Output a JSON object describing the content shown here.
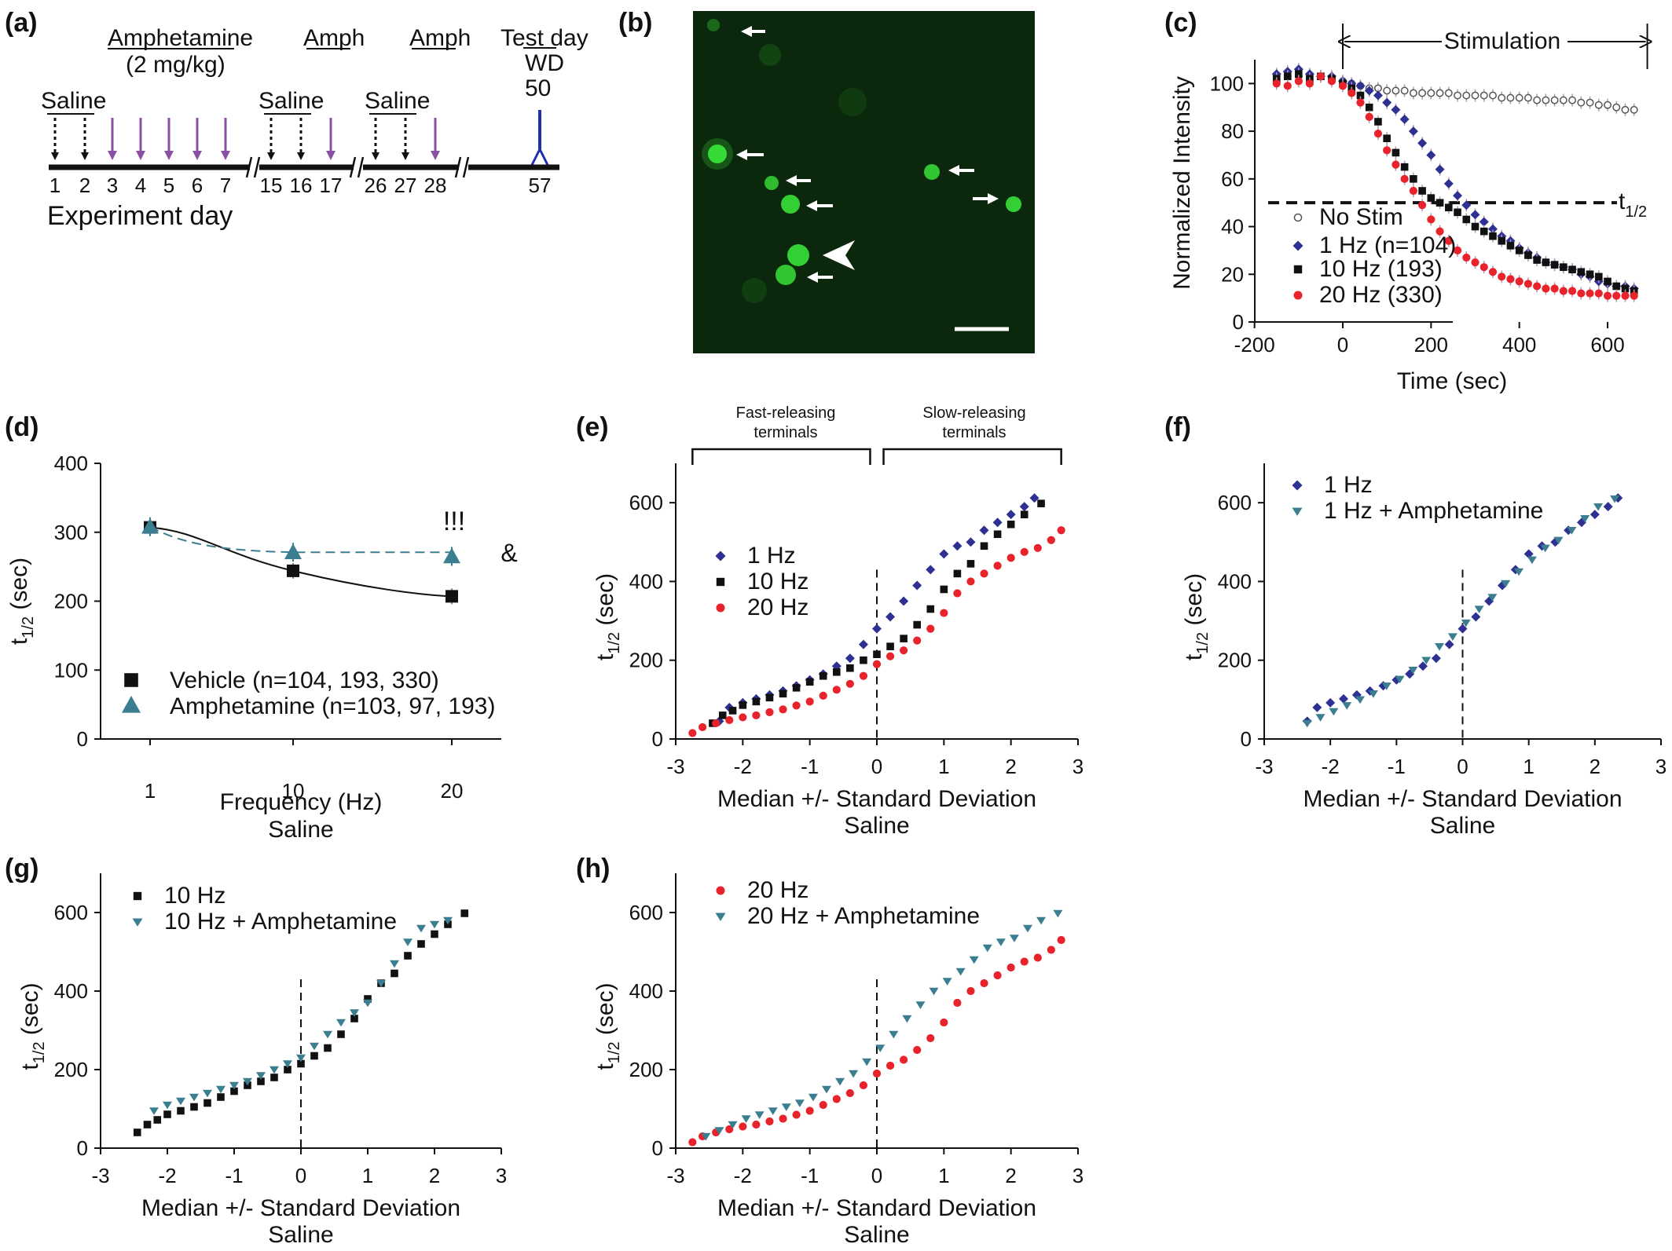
{
  "panel_labels": [
    "(a)",
    "(b)",
    "(c)",
    "(d)",
    "(e)",
    "(f)",
    "(g)",
    "(h)"
  ],
  "colors": {
    "no_stim": "#555555",
    "hz1": "#2e3192",
    "hz10": "#111111",
    "hz20": "#e8232b",
    "amph": "#3a7e90",
    "schedule_amph_arrow": "#8a4fa0",
    "test_day_marker": "#1f2fb0",
    "micrograph_bg": "#0c280c",
    "micrograph_spot": "#39e139"
  },
  "timeline": {
    "saline1": "Saline",
    "amph_title": "Amphetamine",
    "amph_dose": "(2 mg/kg)",
    "saline2": "Saline",
    "amph2": "Amph",
    "saline3": "Saline",
    "amph3": "Amph",
    "test_day": "Test day",
    "wd": "WD",
    "wd_day": "50",
    "days": [
      "1",
      "2",
      "3",
      "4",
      "5",
      "6",
      "7",
      "15",
      "16",
      "17",
      "26",
      "27",
      "28",
      "57"
    ],
    "xlabel": "Experiment day"
  },
  "chart_data": [
    {
      "panel": "(c)",
      "type": "scatter",
      "xlabel": "Time (sec)",
      "ylabel": "Normalized Intensity",
      "xlim": [
        -200,
        700
      ],
      "ylim": [
        0,
        110
      ],
      "xticks": [
        "-200",
        "0",
        "200",
        "400",
        "600"
      ],
      "yticks": [
        "0",
        "20",
        "40",
        "60",
        "80",
        "100"
      ],
      "annotations": {
        "stimulation": "Stimulation",
        "t_half": "t",
        "t_half_sub": "1/2"
      },
      "stim_range": [
        0,
        690
      ],
      "t_half_level": 50,
      "series": [
        {
          "name": "No Stim",
          "x": [
            -150,
            -125,
            -100,
            -75,
            -50,
            -25,
            0,
            20,
            40,
            60,
            80,
            100,
            120,
            140,
            160,
            180,
            200,
            220,
            240,
            260,
            280,
            300,
            320,
            340,
            360,
            380,
            400,
            420,
            440,
            460,
            480,
            500,
            520,
            540,
            560,
            580,
            600,
            620,
            640,
            660
          ],
          "y": [
            103,
            103,
            103,
            102,
            103,
            102,
            101,
            100,
            99,
            98,
            98,
            97,
            97,
            97,
            96,
            96,
            96,
            96,
            96,
            95,
            95,
            95,
            95,
            95,
            94,
            94,
            94,
            94,
            93,
            93,
            93,
            93,
            93,
            92,
            92,
            91,
            91,
            90,
            89,
            89
          ]
        },
        {
          "name": "1 Hz (n=104)",
          "x": [
            -150,
            -125,
            -100,
            -75,
            -50,
            -25,
            0,
            20,
            40,
            60,
            80,
            100,
            120,
            140,
            160,
            180,
            200,
            220,
            240,
            260,
            280,
            300,
            320,
            340,
            360,
            380,
            400,
            420,
            440,
            460,
            480,
            500,
            520,
            540,
            560,
            580,
            600,
            620,
            640,
            660
          ],
          "y": [
            104,
            105,
            106,
            104,
            103,
            103,
            101,
            100,
            99,
            97,
            95,
            92,
            89,
            85,
            80,
            75,
            70,
            64,
            58,
            53,
            49,
            45,
            42,
            39,
            36,
            34,
            31,
            29,
            27,
            25,
            24,
            23,
            22,
            20,
            19,
            17,
            16,
            15,
            15,
            14
          ]
        },
        {
          "name": "10 Hz (193)",
          "x": [
            -150,
            -125,
            -100,
            -75,
            -50,
            -25,
            0,
            20,
            40,
            60,
            80,
            100,
            120,
            140,
            160,
            180,
            200,
            220,
            240,
            260,
            280,
            300,
            320,
            340,
            360,
            380,
            400,
            420,
            440,
            460,
            480,
            500,
            520,
            540,
            560,
            580,
            600,
            620,
            640,
            660
          ],
          "y": [
            102,
            103,
            104,
            102,
            103,
            102,
            100,
            98,
            95,
            90,
            84,
            77,
            71,
            65,
            60,
            55,
            52,
            50,
            48,
            46,
            43,
            40,
            38,
            36,
            34,
            32,
            30,
            28,
            26,
            25,
            24,
            23,
            22,
            21,
            20,
            19,
            17,
            15,
            14,
            13
          ]
        },
        {
          "name": "20 Hz (330)",
          "x": [
            -150,
            -125,
            -100,
            -75,
            -50,
            -25,
            0,
            20,
            40,
            60,
            80,
            100,
            120,
            140,
            160,
            180,
            200,
            220,
            240,
            260,
            280,
            300,
            320,
            340,
            360,
            380,
            400,
            420,
            440,
            460,
            480,
            500,
            520,
            540,
            560,
            580,
            600,
            620,
            640,
            660
          ],
          "y": [
            100,
            99,
            101,
            100,
            103,
            101,
            99,
            96,
            92,
            86,
            79,
            72,
            66,
            60,
            55,
            49,
            43,
            38,
            34,
            30,
            27,
            25,
            23,
            21,
            19,
            18,
            17,
            16,
            15,
            14,
            14,
            13,
            13,
            12,
            12,
            12,
            11,
            11,
            11,
            11
          ]
        }
      ]
    },
    {
      "panel": "(d)",
      "type": "line",
      "xlabel": "Frequency (Hz)",
      "xlabel2": "Saline",
      "ylabel": "t",
      "ylabel_sub": "1/2",
      "ylabel_unit": "(sec)",
      "ylim": [
        0,
        400
      ],
      "categories": [
        "1",
        "10",
        "20"
      ],
      "yticks": [
        "0",
        "100",
        "200",
        "300",
        "400"
      ],
      "annotations": {
        "sig": "!!!",
        "amp": "&"
      },
      "series": [
        {
          "name": "Vehicle (n=104, 193, 330)",
          "values": [
            307,
            244,
            207
          ]
        },
        {
          "name": "Amphetamine (n=103, 97, 193)",
          "values": [
            308,
            271,
            265
          ]
        }
      ]
    },
    {
      "panel": "(e)",
      "type": "scatter",
      "xlabel": "Median +/- Standard Deviation",
      "xlabel2": "Saline",
      "ylabel": "t",
      "ylabel_sub": "1/2",
      "ylabel_unit": "(sec)",
      "xlim": [
        -3,
        3
      ],
      "ylim": [
        0,
        700
      ],
      "xticks": [
        "-3",
        "-2",
        "-1",
        "0",
        "1",
        "2",
        "3"
      ],
      "yticks": [
        "0",
        "200",
        "400",
        "600"
      ],
      "brackets": {
        "fast": "Fast-releasing",
        "fast2": "terminals",
        "slow": "Slow-releasing",
        "slow2": "terminals"
      },
      "series": [
        {
          "name": "1 Hz",
          "x": [
            -2.35,
            -2.2,
            -2.0,
            -1.8,
            -1.6,
            -1.4,
            -1.2,
            -1.0,
            -0.8,
            -0.6,
            -0.4,
            -0.2,
            0.0,
            0.2,
            0.4,
            0.6,
            0.8,
            1.0,
            1.2,
            1.4,
            1.6,
            1.8,
            2.0,
            2.2,
            2.35
          ],
          "y": [
            45,
            80,
            92,
            102,
            112,
            122,
            135,
            150,
            165,
            185,
            205,
            240,
            280,
            310,
            350,
            390,
            430,
            470,
            490,
            500,
            530,
            550,
            570,
            590,
            612
          ]
        },
        {
          "name": "10 Hz",
          "x": [
            -2.45,
            -2.3,
            -2.15,
            -2.0,
            -1.8,
            -1.6,
            -1.4,
            -1.2,
            -1.0,
            -0.8,
            -0.6,
            -0.4,
            -0.2,
            0.0,
            0.2,
            0.4,
            0.6,
            0.8,
            1.0,
            1.2,
            1.4,
            1.6,
            1.8,
            2.0,
            2.2,
            2.45
          ],
          "y": [
            40,
            60,
            72,
            86,
            95,
            105,
            115,
            130,
            145,
            160,
            170,
            180,
            200,
            215,
            235,
            255,
            290,
            330,
            380,
            420,
            445,
            490,
            520,
            545,
            570,
            598
          ]
        },
        {
          "name": "20 Hz",
          "x": [
            -2.75,
            -2.6,
            -2.4,
            -2.2,
            -2.0,
            -1.8,
            -1.6,
            -1.4,
            -1.2,
            -1.0,
            -0.8,
            -0.6,
            -0.4,
            -0.2,
            0.0,
            0.2,
            0.4,
            0.6,
            0.8,
            1.0,
            1.2,
            1.4,
            1.6,
            1.8,
            2.0,
            2.2,
            2.4,
            2.6,
            2.75
          ],
          "y": [
            15,
            30,
            40,
            48,
            55,
            60,
            68,
            75,
            85,
            95,
            110,
            125,
            140,
            160,
            190,
            210,
            225,
            250,
            280,
            320,
            370,
            400,
            420,
            440,
            460,
            475,
            485,
            505,
            530
          ]
        }
      ]
    },
    {
      "panel": "(f)",
      "type": "scatter",
      "xlabel": "Median +/- Standard Deviation",
      "xlabel2": "Saline",
      "ylabel": "t",
      "ylabel_sub": "1/2",
      "ylabel_unit": "(sec)",
      "xlim": [
        -3,
        3
      ],
      "ylim": [
        0,
        700
      ],
      "xticks": [
        "-3",
        "-2",
        "-1",
        "0",
        "1",
        "2",
        "3"
      ],
      "yticks": [
        "0",
        "200",
        "400",
        "600"
      ],
      "series": [
        {
          "name": "1 Hz",
          "x": [
            -2.35,
            -2.2,
            -2.0,
            -1.8,
            -1.6,
            -1.4,
            -1.2,
            -1.0,
            -0.8,
            -0.6,
            -0.4,
            -0.2,
            0.0,
            0.2,
            0.4,
            0.6,
            0.8,
            1.0,
            1.2,
            1.4,
            1.6,
            1.8,
            2.0,
            2.2,
            2.35
          ],
          "y": [
            45,
            80,
            92,
            102,
            112,
            122,
            135,
            150,
            165,
            185,
            205,
            240,
            280,
            310,
            350,
            390,
            430,
            470,
            490,
            500,
            530,
            550,
            570,
            590,
            612
          ]
        },
        {
          "name": "1 Hz + Amphetamine",
          "x": [
            -2.35,
            -2.15,
            -1.95,
            -1.75,
            -1.55,
            -1.35,
            -1.15,
            -0.95,
            -0.75,
            -0.55,
            -0.35,
            -0.15,
            0.05,
            0.25,
            0.45,
            0.65,
            0.85,
            1.05,
            1.25,
            1.45,
            1.65,
            1.85,
            2.05,
            2.3
          ],
          "y": [
            40,
            55,
            70,
            85,
            100,
            115,
            135,
            152,
            175,
            200,
            235,
            260,
            295,
            330,
            360,
            395,
            425,
            455,
            485,
            505,
            530,
            560,
            590,
            610
          ]
        }
      ]
    },
    {
      "panel": "(g)",
      "type": "scatter",
      "xlabel": "Median +/- Standard Deviation",
      "xlabel2": "Saline",
      "ylabel": "t",
      "ylabel_sub": "1/2",
      "ylabel_unit": "(sec)",
      "xlim": [
        -3,
        3
      ],
      "ylim": [
        0,
        700
      ],
      "xticks": [
        "-3",
        "-2",
        "-1",
        "0",
        "1",
        "2",
        "3"
      ],
      "yticks": [
        "0",
        "200",
        "400",
        "600"
      ],
      "series": [
        {
          "name": "10 Hz",
          "x": [
            -2.45,
            -2.3,
            -2.15,
            -2.0,
            -1.8,
            -1.6,
            -1.4,
            -1.2,
            -1.0,
            -0.8,
            -0.6,
            -0.4,
            -0.2,
            0.0,
            0.2,
            0.4,
            0.6,
            0.8,
            1.0,
            1.2,
            1.4,
            1.6,
            1.8,
            2.0,
            2.2,
            2.45
          ],
          "y": [
            40,
            60,
            72,
            86,
            95,
            105,
            115,
            130,
            145,
            160,
            170,
            180,
            200,
            215,
            235,
            255,
            290,
            330,
            380,
            420,
            445,
            490,
            520,
            545,
            570,
            598
          ]
        },
        {
          "name": "10 Hz + Amphetamine",
          "x": [
            -2.2,
            -2.0,
            -1.8,
            -1.6,
            -1.4,
            -1.2,
            -1.0,
            -0.8,
            -0.6,
            -0.4,
            -0.2,
            0.0,
            0.2,
            0.4,
            0.6,
            0.8,
            1.0,
            1.2,
            1.4,
            1.6,
            1.8,
            2.0,
            2.2
          ],
          "y": [
            95,
            110,
            120,
            130,
            140,
            150,
            160,
            170,
            185,
            200,
            215,
            230,
            260,
            290,
            320,
            345,
            370,
            420,
            470,
            525,
            560,
            570,
            580
          ]
        }
      ]
    },
    {
      "panel": "(h)",
      "type": "scatter",
      "xlabel": "Median +/- Standard Deviation",
      "xlabel2": "Saline",
      "ylabel": "t",
      "ylabel_sub": "1/2",
      "ylabel_unit": "(sec)",
      "xlim": [
        -3,
        3
      ],
      "ylim": [
        0,
        700
      ],
      "xticks": [
        "-3",
        "-2",
        "-1",
        "0",
        "1",
        "2",
        "3"
      ],
      "yticks": [
        "0",
        "200",
        "400",
        "600"
      ],
      "series": [
        {
          "name": "20 Hz",
          "x": [
            -2.75,
            -2.6,
            -2.4,
            -2.2,
            -2.0,
            -1.8,
            -1.6,
            -1.4,
            -1.2,
            -1.0,
            -0.8,
            -0.6,
            -0.4,
            -0.2,
            0.0,
            0.2,
            0.4,
            0.6,
            0.8,
            1.0,
            1.2,
            1.4,
            1.6,
            1.8,
            2.0,
            2.2,
            2.4,
            2.6,
            2.75
          ],
          "y": [
            15,
            30,
            40,
            48,
            55,
            60,
            68,
            75,
            85,
            95,
            110,
            125,
            140,
            160,
            190,
            210,
            225,
            250,
            280,
            320,
            370,
            400,
            420,
            440,
            460,
            475,
            485,
            505,
            530
          ]
        },
        {
          "name": "20 Hz + Amphetamine",
          "x": [
            -2.55,
            -2.35,
            -2.15,
            -1.95,
            -1.75,
            -1.55,
            -1.35,
            -1.15,
            -0.95,
            -0.75,
            -0.55,
            -0.35,
            -0.15,
            0.05,
            0.25,
            0.45,
            0.65,
            0.85,
            1.05,
            1.25,
            1.45,
            1.65,
            1.85,
            2.05,
            2.25,
            2.45,
            2.7
          ],
          "y": [
            30,
            45,
            60,
            75,
            85,
            95,
            105,
            115,
            130,
            150,
            170,
            190,
            220,
            255,
            290,
            330,
            365,
            400,
            425,
            450,
            480,
            510,
            525,
            535,
            560,
            580,
            598
          ]
        }
      ]
    }
  ]
}
